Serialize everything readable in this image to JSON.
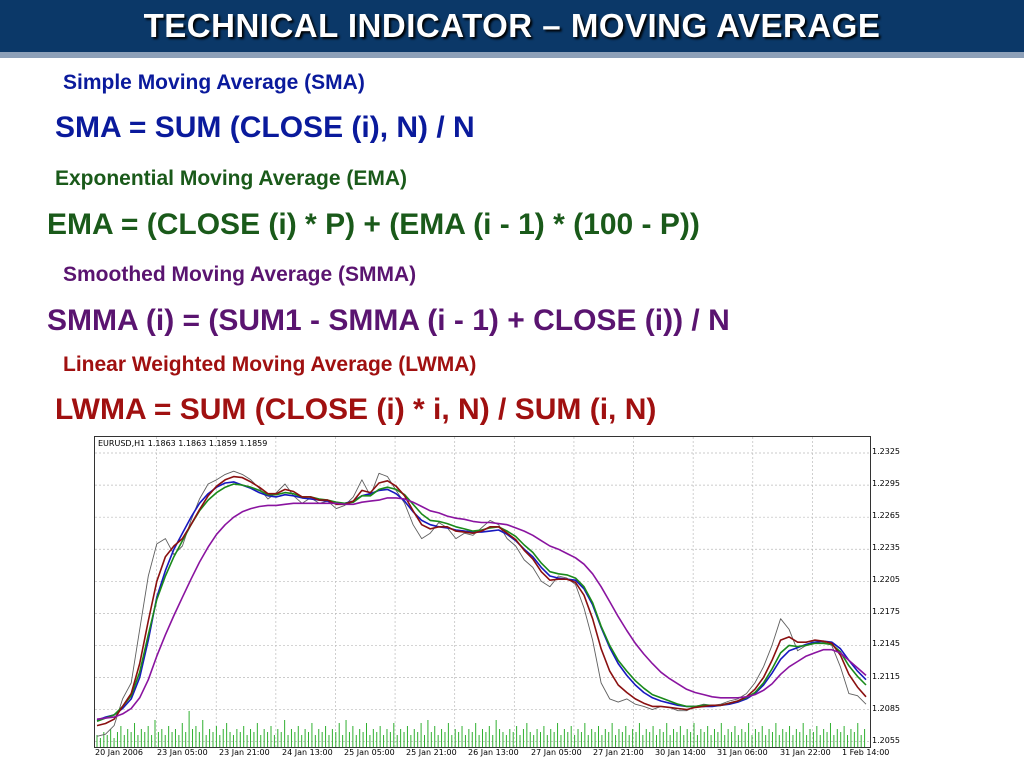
{
  "title": "TECHNICAL INDICATOR – MOVING AVERAGE",
  "sections": [
    {
      "heading": "Simple Moving Average (SMA)",
      "formula": "SMA = SUM (CLOSE (i), N) / N",
      "color": "#0a1a9c"
    },
    {
      "heading": "Exponential Moving Average (EMA)",
      "formula": "EMA = (CLOSE (i) * P) + (EMA (i - 1) * (100 - P))",
      "color": "#1a5a1a"
    },
    {
      "heading": "Smoothed Moving Average (SMMA)",
      "formula": "SMMA (i) = (SUM1 - SMMA (i - 1) + CLOSE (i)) / N",
      "color": "#5a1470"
    },
    {
      "heading": "Linear Weighted Moving Average (LWMA)",
      "formula": "LWMA = SUM (CLOSE (i) * i, N) / SUM (i, N)",
      "color": "#a01010"
    }
  ],
  "chart": {
    "info": "EURUSD,H1  1.1863 1.1863 1.1859 1.1859",
    "y_ticks": [
      "1.2325",
      "1.2295",
      "1.2265",
      "1.2235",
      "1.2205",
      "1.2175",
      "1.2145",
      "1.2115",
      "1.2085",
      "1.2055"
    ],
    "x_ticks": [
      "20 Jan 2006",
      "23 Jan 05:00",
      "23 Jan 21:00",
      "24 Jan 13:00",
      "25 Jan 05:00",
      "25 Jan 21:00",
      "26 Jan 13:00",
      "27 Jan 05:00",
      "27 Jan 21:00",
      "30 Jan 14:00",
      "31 Jan 06:00",
      "31 Jan 22:00",
      "1 Feb 14:00"
    ]
  },
  "chart_data": {
    "type": "line",
    "ylim": [
      1.205,
      1.234
    ],
    "grid": true,
    "series": [
      {
        "color": "#606060",
        "width": 0.9,
        "values": [
          1.206,
          1.2062,
          1.207,
          1.2095,
          1.211,
          1.216,
          1.221,
          1.224,
          1.2245,
          1.223,
          1.2238,
          1.2262,
          1.2282,
          1.2296,
          1.23,
          1.2305,
          1.2308,
          1.2305,
          1.23,
          1.2292,
          1.2282,
          1.2288,
          1.2296,
          1.2285,
          1.2278,
          1.2283,
          1.2278,
          1.228,
          1.2273,
          1.2276,
          1.2284,
          1.23,
          1.2285,
          1.2306,
          1.2303,
          1.229,
          1.2278,
          1.2258,
          1.2245,
          1.225,
          1.226,
          1.2255,
          1.2245,
          1.225,
          1.2248,
          1.2255,
          1.2262,
          1.2258,
          1.2245,
          1.2238,
          1.2225,
          1.2218,
          1.2205,
          1.22,
          1.221,
          1.2208,
          1.2202,
          1.218,
          1.215,
          1.211,
          1.2095,
          1.2092,
          1.2095,
          1.209,
          1.2088,
          1.2085,
          1.2088,
          1.2087,
          1.2084,
          1.2084,
          1.2088,
          1.209,
          1.2089,
          1.209,
          1.2093,
          1.2095,
          1.21,
          1.211,
          1.2125,
          1.2145,
          1.217,
          1.216,
          1.214,
          1.2145,
          1.215,
          1.2148,
          1.2145,
          1.2125,
          1.21,
          1.2098,
          1.209
        ]
      },
      {
        "color": "#1818c0",
        "width": 1.6,
        "values": [
          1.2075,
          1.2078,
          1.208,
          1.2086,
          1.2095,
          1.2115,
          1.215,
          1.219,
          1.2215,
          1.2235,
          1.225,
          1.2265,
          1.2278,
          1.2287,
          1.2293,
          1.2297,
          1.2298,
          1.2295,
          1.2292,
          1.2288,
          1.2285,
          1.2284,
          1.2286,
          1.2285,
          1.2283,
          1.2282,
          1.2281,
          1.228,
          1.2278,
          1.2278,
          1.228,
          1.2285,
          1.2287,
          1.229,
          1.2291,
          1.2287,
          1.228,
          1.227,
          1.2262,
          1.2258,
          1.2256,
          1.2255,
          1.2253,
          1.2252,
          1.2251,
          1.2251,
          1.2252,
          1.2253,
          1.2249,
          1.2243,
          1.2235,
          1.2228,
          1.2218,
          1.221,
          1.2208,
          1.2207,
          1.2206,
          1.2198,
          1.2183,
          1.2162,
          1.2143,
          1.2128,
          1.2117,
          1.2108,
          1.2101,
          1.2096,
          1.2093,
          1.2091,
          1.2089,
          1.2088,
          1.2088,
          1.2088,
          1.2088,
          1.2089,
          1.209,
          1.2092,
          1.2095,
          1.21,
          1.2108,
          1.2119,
          1.2132,
          1.214,
          1.2143,
          1.2146,
          1.2148,
          1.2149,
          1.2148,
          1.2142,
          1.2131,
          1.2121,
          1.2113
        ]
      },
      {
        "color": "#1a8a1a",
        "width": 1.6,
        "values": [
          1.2074,
          1.2077,
          1.208,
          1.2088,
          1.2098,
          1.212,
          1.2155,
          1.2188,
          1.221,
          1.2228,
          1.2243,
          1.2258,
          1.2271,
          1.2281,
          1.2288,
          1.2293,
          1.2296,
          1.2295,
          1.2293,
          1.229,
          1.2286,
          1.2286,
          1.2288,
          1.2287,
          1.2284,
          1.2284,
          1.2282,
          1.2281,
          1.2279,
          1.2278,
          1.2279,
          1.2285,
          1.2285,
          1.2291,
          1.2293,
          1.2291,
          1.2286,
          1.2277,
          1.2268,
          1.2262,
          1.2261,
          1.2259,
          1.2256,
          1.2254,
          1.2252,
          1.2253,
          1.2255,
          1.2256,
          1.2252,
          1.2247,
          1.2239,
          1.2232,
          1.2222,
          1.2214,
          1.2212,
          1.2211,
          1.2208,
          1.22,
          1.2185,
          1.2163,
          1.2145,
          1.2131,
          1.2121,
          1.2112,
          1.2105,
          1.2099,
          1.2096,
          1.2093,
          1.209,
          1.2088,
          1.2088,
          1.2089,
          1.2089,
          1.2089,
          1.2091,
          1.2093,
          1.2096,
          1.2101,
          1.211,
          1.2123,
          1.2138,
          1.2145,
          1.2144,
          1.2145,
          1.2147,
          1.2147,
          1.2146,
          1.2139,
          1.2126,
          1.2116,
          1.2108
        ]
      },
      {
        "color": "#8a1010",
        "width": 1.6,
        "values": [
          1.207,
          1.2072,
          1.2076,
          1.2088,
          1.21,
          1.2128,
          1.2168,
          1.2205,
          1.2228,
          1.2238,
          1.2245,
          1.2258,
          1.2272,
          1.2285,
          1.2294,
          1.23,
          1.2303,
          1.2302,
          1.2298,
          1.2293,
          1.2287,
          1.2287,
          1.2291,
          1.2289,
          1.2284,
          1.2284,
          1.2281,
          1.2281,
          1.2277,
          1.2277,
          1.228,
          1.229,
          1.2288,
          1.2297,
          1.2299,
          1.2294,
          1.2285,
          1.2271,
          1.2258,
          1.2254,
          1.2256,
          1.2256,
          1.2252,
          1.2251,
          1.225,
          1.2252,
          1.2256,
          1.2256,
          1.225,
          1.2244,
          1.2234,
          1.2226,
          1.2214,
          1.2206,
          1.2207,
          1.2207,
          1.2204,
          1.2192,
          1.217,
          1.2142,
          1.2121,
          1.2108,
          1.2101,
          1.2095,
          1.2091,
          1.2088,
          1.2088,
          1.2087,
          1.2086,
          1.2085,
          1.2087,
          1.2088,
          1.2089,
          1.2089,
          1.2091,
          1.2093,
          1.2097,
          1.2104,
          1.2115,
          1.2131,
          1.215,
          1.2153,
          1.2148,
          1.2148,
          1.215,
          1.2149,
          1.2147,
          1.2136,
          1.2118,
          1.2106,
          1.2097
        ]
      },
      {
        "color": "#8a14a0",
        "width": 1.6,
        "values": [
          1.2076,
          1.2077,
          1.2078,
          1.2081,
          1.2086,
          1.2096,
          1.2113,
          1.2135,
          1.2155,
          1.2173,
          1.219,
          1.2207,
          1.2223,
          1.2237,
          1.2249,
          1.2258,
          1.2265,
          1.227,
          1.2273,
          1.2275,
          1.2276,
          1.2276,
          1.2277,
          1.2278,
          1.2278,
          1.2278,
          1.2278,
          1.2278,
          1.2278,
          1.2277,
          1.2277,
          1.2279,
          1.228,
          1.2281,
          1.2283,
          1.2283,
          1.2282,
          1.2279,
          1.2275,
          1.2271,
          1.2269,
          1.2266,
          1.2264,
          1.2263,
          1.2261,
          1.226,
          1.226,
          1.2259,
          1.2258,
          1.2255,
          1.2252,
          1.2248,
          1.2243,
          1.2238,
          1.2235,
          1.2231,
          1.2227,
          1.2221,
          1.2212,
          1.22,
          1.2186,
          1.2172,
          1.2159,
          1.2147,
          1.2137,
          1.2128,
          1.212,
          1.2114,
          1.2109,
          1.2104,
          1.2101,
          1.2099,
          1.2097,
          1.2096,
          1.2096,
          1.2096,
          1.2097,
          1.2099,
          1.2103,
          1.2109,
          1.2118,
          1.2125,
          1.213,
          1.2135,
          1.2138,
          1.2141,
          1.2141,
          1.2138,
          1.2131,
          1.2124,
          1.2117
        ]
      }
    ],
    "volume": [
      4,
      3,
      5,
      4,
      6,
      3,
      5,
      7,
      4,
      6,
      5,
      8,
      4,
      6,
      5,
      7,
      4,
      9,
      5,
      6,
      4,
      7,
      5,
      6,
      4,
      8,
      5,
      12,
      6,
      7,
      5,
      9,
      4,
      6,
      5,
      7,
      4,
      6,
      8,
      5,
      4,
      6,
      5,
      7,
      4,
      6,
      5,
      8,
      4,
      6,
      5,
      7,
      4,
      6,
      5,
      9,
      4,
      6,
      5,
      7,
      4,
      6,
      5,
      8,
      4,
      6,
      5,
      7,
      4,
      6,
      5,
      8,
      4,
      9,
      5,
      7,
      4,
      6,
      5,
      8,
      4,
      6,
      5,
      7,
      4,
      6,
      5,
      8,
      4,
      6,
      5,
      7,
      4,
      6,
      5,
      8,
      4,
      9,
      5,
      7,
      4,
      6,
      5,
      8,
      4,
      6,
      5,
      7,
      4,
      6,
      5,
      8,
      4,
      6,
      5,
      7,
      4,
      9,
      6,
      5,
      4,
      6,
      5,
      7,
      4,
      6,
      8,
      5,
      4,
      6,
      5,
      7,
      4,
      6,
      5,
      8,
      4,
      6,
      5,
      7,
      4,
      6,
      5,
      8,
      4,
      6,
      5,
      7,
      4,
      6,
      5,
      8,
      4,
      6,
      5,
      7,
      4,
      6,
      5,
      8,
      4,
      6,
      5,
      7,
      4,
      6,
      5,
      8,
      4,
      6,
      5,
      7,
      4,
      6,
      5,
      8,
      4,
      6,
      5,
      7,
      4,
      6,
      5,
      8,
      4,
      6,
      5,
      7,
      4,
      6,
      5,
      8,
      4,
      6,
      5,
      7,
      4,
      6,
      5,
      8,
      4,
      6,
      5,
      7,
      4,
      6,
      5,
      8,
      4,
      6,
      5,
      7,
      4,
      6,
      5,
      8,
      4,
      6,
      5,
      7,
      4,
      6,
      5,
      8,
      4,
      6
    ]
  }
}
